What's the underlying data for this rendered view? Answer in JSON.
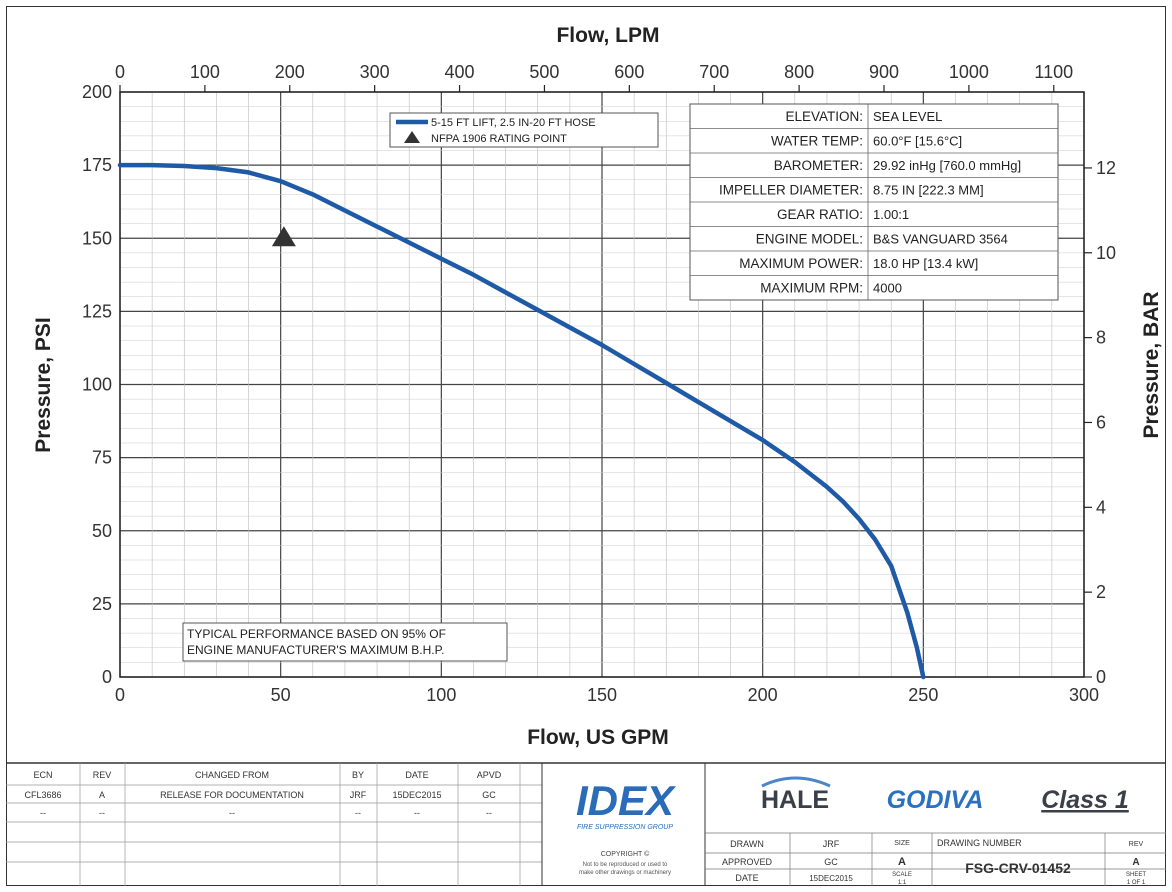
{
  "chart_data": {
    "type": "line",
    "title": "",
    "xlabel": "Flow, US GPM",
    "ylabel": "Pressure, PSI",
    "x2label": "Flow, LPM",
    "y2label": "Pressure, BAR",
    "xlim": [
      0,
      300
    ],
    "ylim": [
      0,
      200
    ],
    "x2lim": [
      0,
      1135.6
    ],
    "y2lim": [
      0,
      13.79
    ],
    "x_ticks": [
      "0",
      "50",
      "100",
      "150",
      "200",
      "250",
      "300"
    ],
    "y_ticks": [
      "0",
      "25",
      "50",
      "75",
      "100",
      "125",
      "150",
      "175",
      "200"
    ],
    "x2_ticks": [
      "0",
      "100",
      "200",
      "300",
      "400",
      "500",
      "600",
      "700",
      "800",
      "900",
      "1000",
      "1100"
    ],
    "y2_ticks": [
      "0",
      "2",
      "4",
      "6",
      "8",
      "10",
      "12"
    ],
    "grid": true,
    "legend_position": "top-center",
    "series": [
      {
        "name": "5-15 FT LIFT, 2.5 IN-20 FT HOSE",
        "color": "#1f5aa6",
        "x": [
          0,
          10,
          20,
          30,
          40,
          50,
          60,
          70,
          80,
          90,
          100,
          110,
          120,
          130,
          140,
          150,
          160,
          170,
          180,
          190,
          200,
          210,
          220,
          225,
          230,
          235,
          240,
          245,
          248,
          250
        ],
        "y": [
          175,
          175,
          174.7,
          174,
          172.5,
          169.5,
          165,
          159.5,
          154,
          148.5,
          143,
          137.5,
          131.5,
          125.5,
          119.5,
          113.5,
          107,
          100.5,
          94,
          87.5,
          81,
          73.5,
          65,
          60,
          54,
          47,
          38,
          22,
          10,
          0
        ]
      }
    ],
    "points": [
      {
        "name": "NFPA 1906 RATING POINT",
        "x": 51,
        "y": 150,
        "marker": "triangle"
      }
    ],
    "info_table": [
      {
        "label": "ELEVATION:",
        "value": "SEA LEVEL"
      },
      {
        "label": "WATER TEMP:",
        "value": "60.0°F [15.6°C]"
      },
      {
        "label": "BAROMETER:",
        "value": "29.92 inHg [760.0 mmHg]"
      },
      {
        "label": "IMPELLER DIAMETER:",
        "value": "8.75 IN [222.3 MM]"
      },
      {
        "label": "GEAR RATIO:",
        "value": "1.00:1"
      },
      {
        "label": "ENGINE MODEL:",
        "value": "B&S VANGUARD 3564"
      },
      {
        "label": "MAXIMUM POWER:",
        "value": "18.0 HP [13.4 kW]"
      },
      {
        "label": "MAXIMUM RPM:",
        "value": "4000"
      }
    ],
    "annotation": [
      "TYPICAL PERFORMANCE BASED ON 95% OF",
      "ENGINE MANUFACTURER'S MAXIMUM B.H.P."
    ]
  },
  "title_block": {
    "rev_headers": [
      "ECN",
      "REV",
      "CHANGED FROM",
      "BY",
      "DATE",
      "APVD"
    ],
    "rev_rows": [
      [
        "CFL3686",
        "A",
        "RELEASE FOR DOCUMENTATION",
        "JRF",
        "15DEC2015",
        "GC"
      ],
      [
        "--",
        "--",
        "--",
        "--",
        "--",
        "--"
      ]
    ],
    "company_logo": "IDEX",
    "company_tagline": "FIRE SUPPRESSION GROUP",
    "copyright_title": "COPYRIGHT ©",
    "copyright_lines": [
      "Not to be reproduced or used to",
      "make other drawings or machinery"
    ],
    "brands": [
      "HALE",
      "GODIVA",
      "Class 1"
    ],
    "drawn_label": "DRAWN",
    "drawn_value": "JRF",
    "approved_label": "APPROVED",
    "approved_value": "GC",
    "date_label": "DATE",
    "date_value": "15DEC2015",
    "size_label": "SIZE",
    "size_value": "A",
    "scale_label": "SCALE",
    "scale_value": "1:1",
    "drawing_number_label": "DRAWING NUMBER",
    "drawing_number": "FSG-CRV-01452",
    "rev_label": "REV",
    "rev_value": "A",
    "sheet_label": "SHEET",
    "sheet_value": "1 OF 1"
  }
}
